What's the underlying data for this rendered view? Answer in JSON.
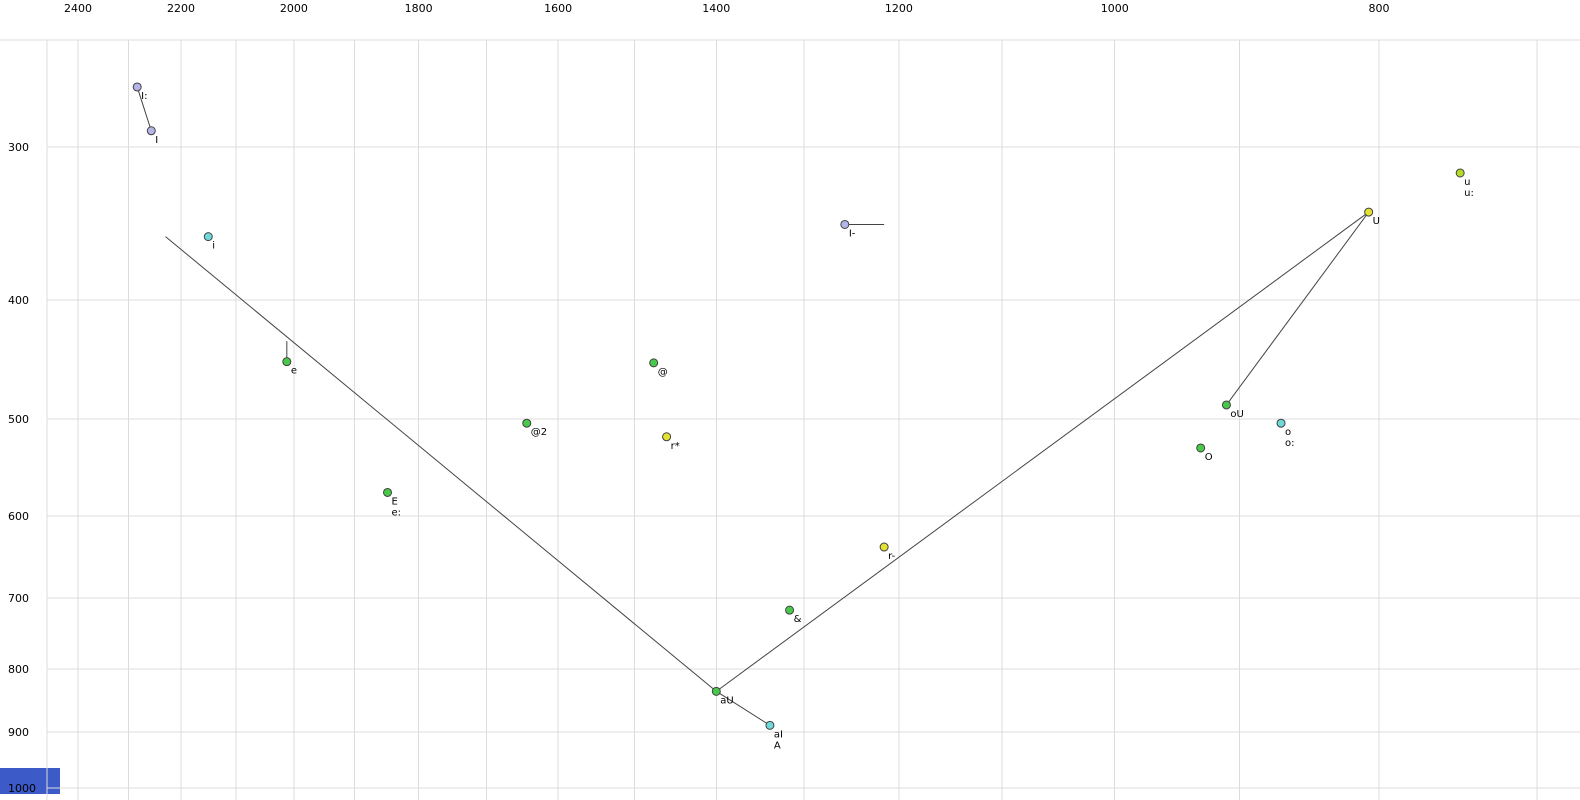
{
  "chart_data": {
    "type": "scatter",
    "description": "Vowel formant plot (F2 horizontal reversed log axis on top, F1 vertical log axis on left, values in Hz)",
    "x_axis": {
      "position": "top",
      "scale": "log",
      "reversed": true,
      "ticks": [
        2400,
        2200,
        2000,
        1800,
        1600,
        1400,
        1200,
        1000,
        800
      ],
      "gridlines": [
        2400,
        2300,
        2200,
        2100,
        2000,
        1900,
        1800,
        1700,
        1600,
        1500,
        1400,
        1300,
        1200,
        1100,
        1000,
        900,
        800,
        700
      ]
    },
    "y_axis": {
      "position": "left",
      "scale": "log",
      "increases_downward": true,
      "ticks": [
        300,
        400,
        500,
        600,
        700,
        800,
        900,
        1000
      ],
      "gridlines": [
        300,
        400,
        500,
        600,
        700,
        800,
        900,
        1000
      ]
    },
    "points": [
      {
        "labels": [
          "I:"
        ],
        "f2": 2283,
        "f1": 268,
        "color": "#b4b4e8"
      },
      {
        "labels": [
          "I"
        ],
        "f2": 2256,
        "f1": 291,
        "color": "#b4b4e8"
      },
      {
        "labels": [
          "i"
        ],
        "f2": 2150,
        "f1": 355,
        "color": "#6fd8d8"
      },
      {
        "labels": [
          "e"
        ],
        "f2": 2012,
        "f1": 449,
        "color": "#49c949"
      },
      {
        "labels": [
          "E",
          "e:"
        ],
        "f2": 1848,
        "f1": 574,
        "color": "#49c949"
      },
      {
        "labels": [
          "@2"
        ],
        "f2": 1643,
        "f1": 504,
        "color": "#49c949"
      },
      {
        "labels": [
          "@"
        ],
        "f2": 1476,
        "f1": 450,
        "color": "#49c949"
      },
      {
        "labels": [
          "r*"
        ],
        "f2": 1460,
        "f1": 517,
        "color": "#e2e232"
      },
      {
        "labels": [
          "I-"
        ],
        "f2": 1256,
        "f1": 347,
        "color": "#b4b4e8"
      },
      {
        "labels": [
          "r-"
        ],
        "f2": 1215,
        "f1": 636,
        "color": "#e2e232"
      },
      {
        "labels": [
          "&"
        ],
        "f2": 1316,
        "f1": 716,
        "color": "#49c949"
      },
      {
        "labels": [
          "aU"
        ],
        "f2": 1400,
        "f1": 834,
        "color": "#49c949"
      },
      {
        "labels": [
          "aI",
          "A"
        ],
        "f2": 1338,
        "f1": 889,
        "color": "#6fd8d8"
      },
      {
        "labels": [
          "U"
        ],
        "f2": 807,
        "f1": 339,
        "color": "#e2e232"
      },
      {
        "labels": [
          "u",
          "u:"
        ],
        "f2": 747,
        "f1": 315,
        "color": "#b4dc28"
      },
      {
        "labels": [
          "oU"
        ],
        "f2": 910,
        "f1": 487,
        "color": "#49c949"
      },
      {
        "labels": [
          "o",
          "o:"
        ],
        "f2": 869,
        "f1": 504,
        "color": "#6fd8d8"
      },
      {
        "labels": [
          "O"
        ],
        "f2": 930,
        "f1": 528,
        "color": "#49c949"
      }
    ],
    "segments": [
      {
        "name": "trajectory-left-arm",
        "from": [
          2229,
          355
        ],
        "to": [
          1400,
          834
        ]
      },
      {
        "name": "trajectory-aU-to-U",
        "from": [
          1400,
          834
        ],
        "to": [
          807,
          339
        ]
      },
      {
        "name": "trajectory-U-to-oU",
        "from": [
          807,
          339
        ],
        "to": [
          910,
          487
        ]
      },
      {
        "name": "connector-aU-to-aI",
        "from": [
          1400,
          834
        ],
        "to": [
          1338,
          889
        ]
      },
      {
        "name": "connector-I:-to-I",
        "from": [
          2283,
          268
        ],
        "to": [
          2256,
          291
        ]
      },
      {
        "name": "trajectory-I-",
        "from": [
          1256,
          347
        ],
        "to": [
          1215,
          347
        ]
      },
      {
        "name": "trajectory-e",
        "from": [
          2012,
          432
        ],
        "to": [
          2012,
          446
        ]
      }
    ]
  },
  "colors": {
    "background": "#ffffff",
    "gridline": "#dcdcdc",
    "segment": "#444444",
    "point_stroke": "#404040",
    "corner_rectangle": "#3c5ac8"
  }
}
